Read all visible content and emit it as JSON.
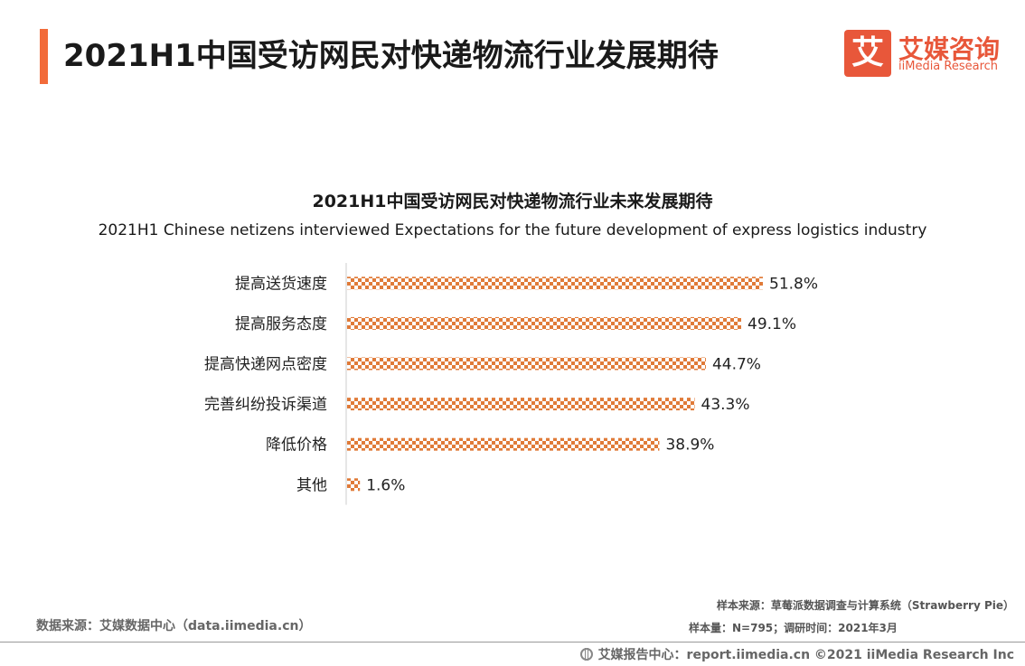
{
  "header": {
    "title": "2021H1中国受访网民对快递物流行业发展期待"
  },
  "logo": {
    "mark": "艾",
    "name_cn": "艾媒咨询",
    "name_en": "iiMedia Research"
  },
  "colors": {
    "accent": "#f26b3a",
    "bar": "#e07b39",
    "logo": "#e8573a"
  },
  "chart_data": {
    "type": "bar",
    "orientation": "horizontal",
    "title": "2021H1中国受访网民对快递物流行业未来发展期待",
    "subtitle": "2021H1 Chinese netizens interviewed Expectations for the future development of express logistics industry",
    "categories": [
      "提高送货速度",
      "提高服务态度",
      "提高快递网点密度",
      "完善纠纷投诉渠道",
      "降低价格",
      "其他"
    ],
    "values": [
      51.8,
      49.1,
      44.7,
      43.3,
      38.9,
      1.6
    ],
    "value_labels": [
      "51.8%",
      "49.1%",
      "44.7%",
      "43.3%",
      "38.9%",
      "1.6%"
    ],
    "unit": "%",
    "xlim": [
      0,
      60
    ],
    "grid": false,
    "legend": "none"
  },
  "footer": {
    "data_source": "数据来源：艾媒数据中心（data.iimedia.cn）",
    "sample_source": "样本来源：草莓派数据调查与计算系统（Strawberry Pie）",
    "sample_size": "样本量：N=795；调研时间：2021年3月",
    "copyright": "艾媒报告中心：report.iimedia.cn  ©2021  iiMedia Research  Inc"
  }
}
